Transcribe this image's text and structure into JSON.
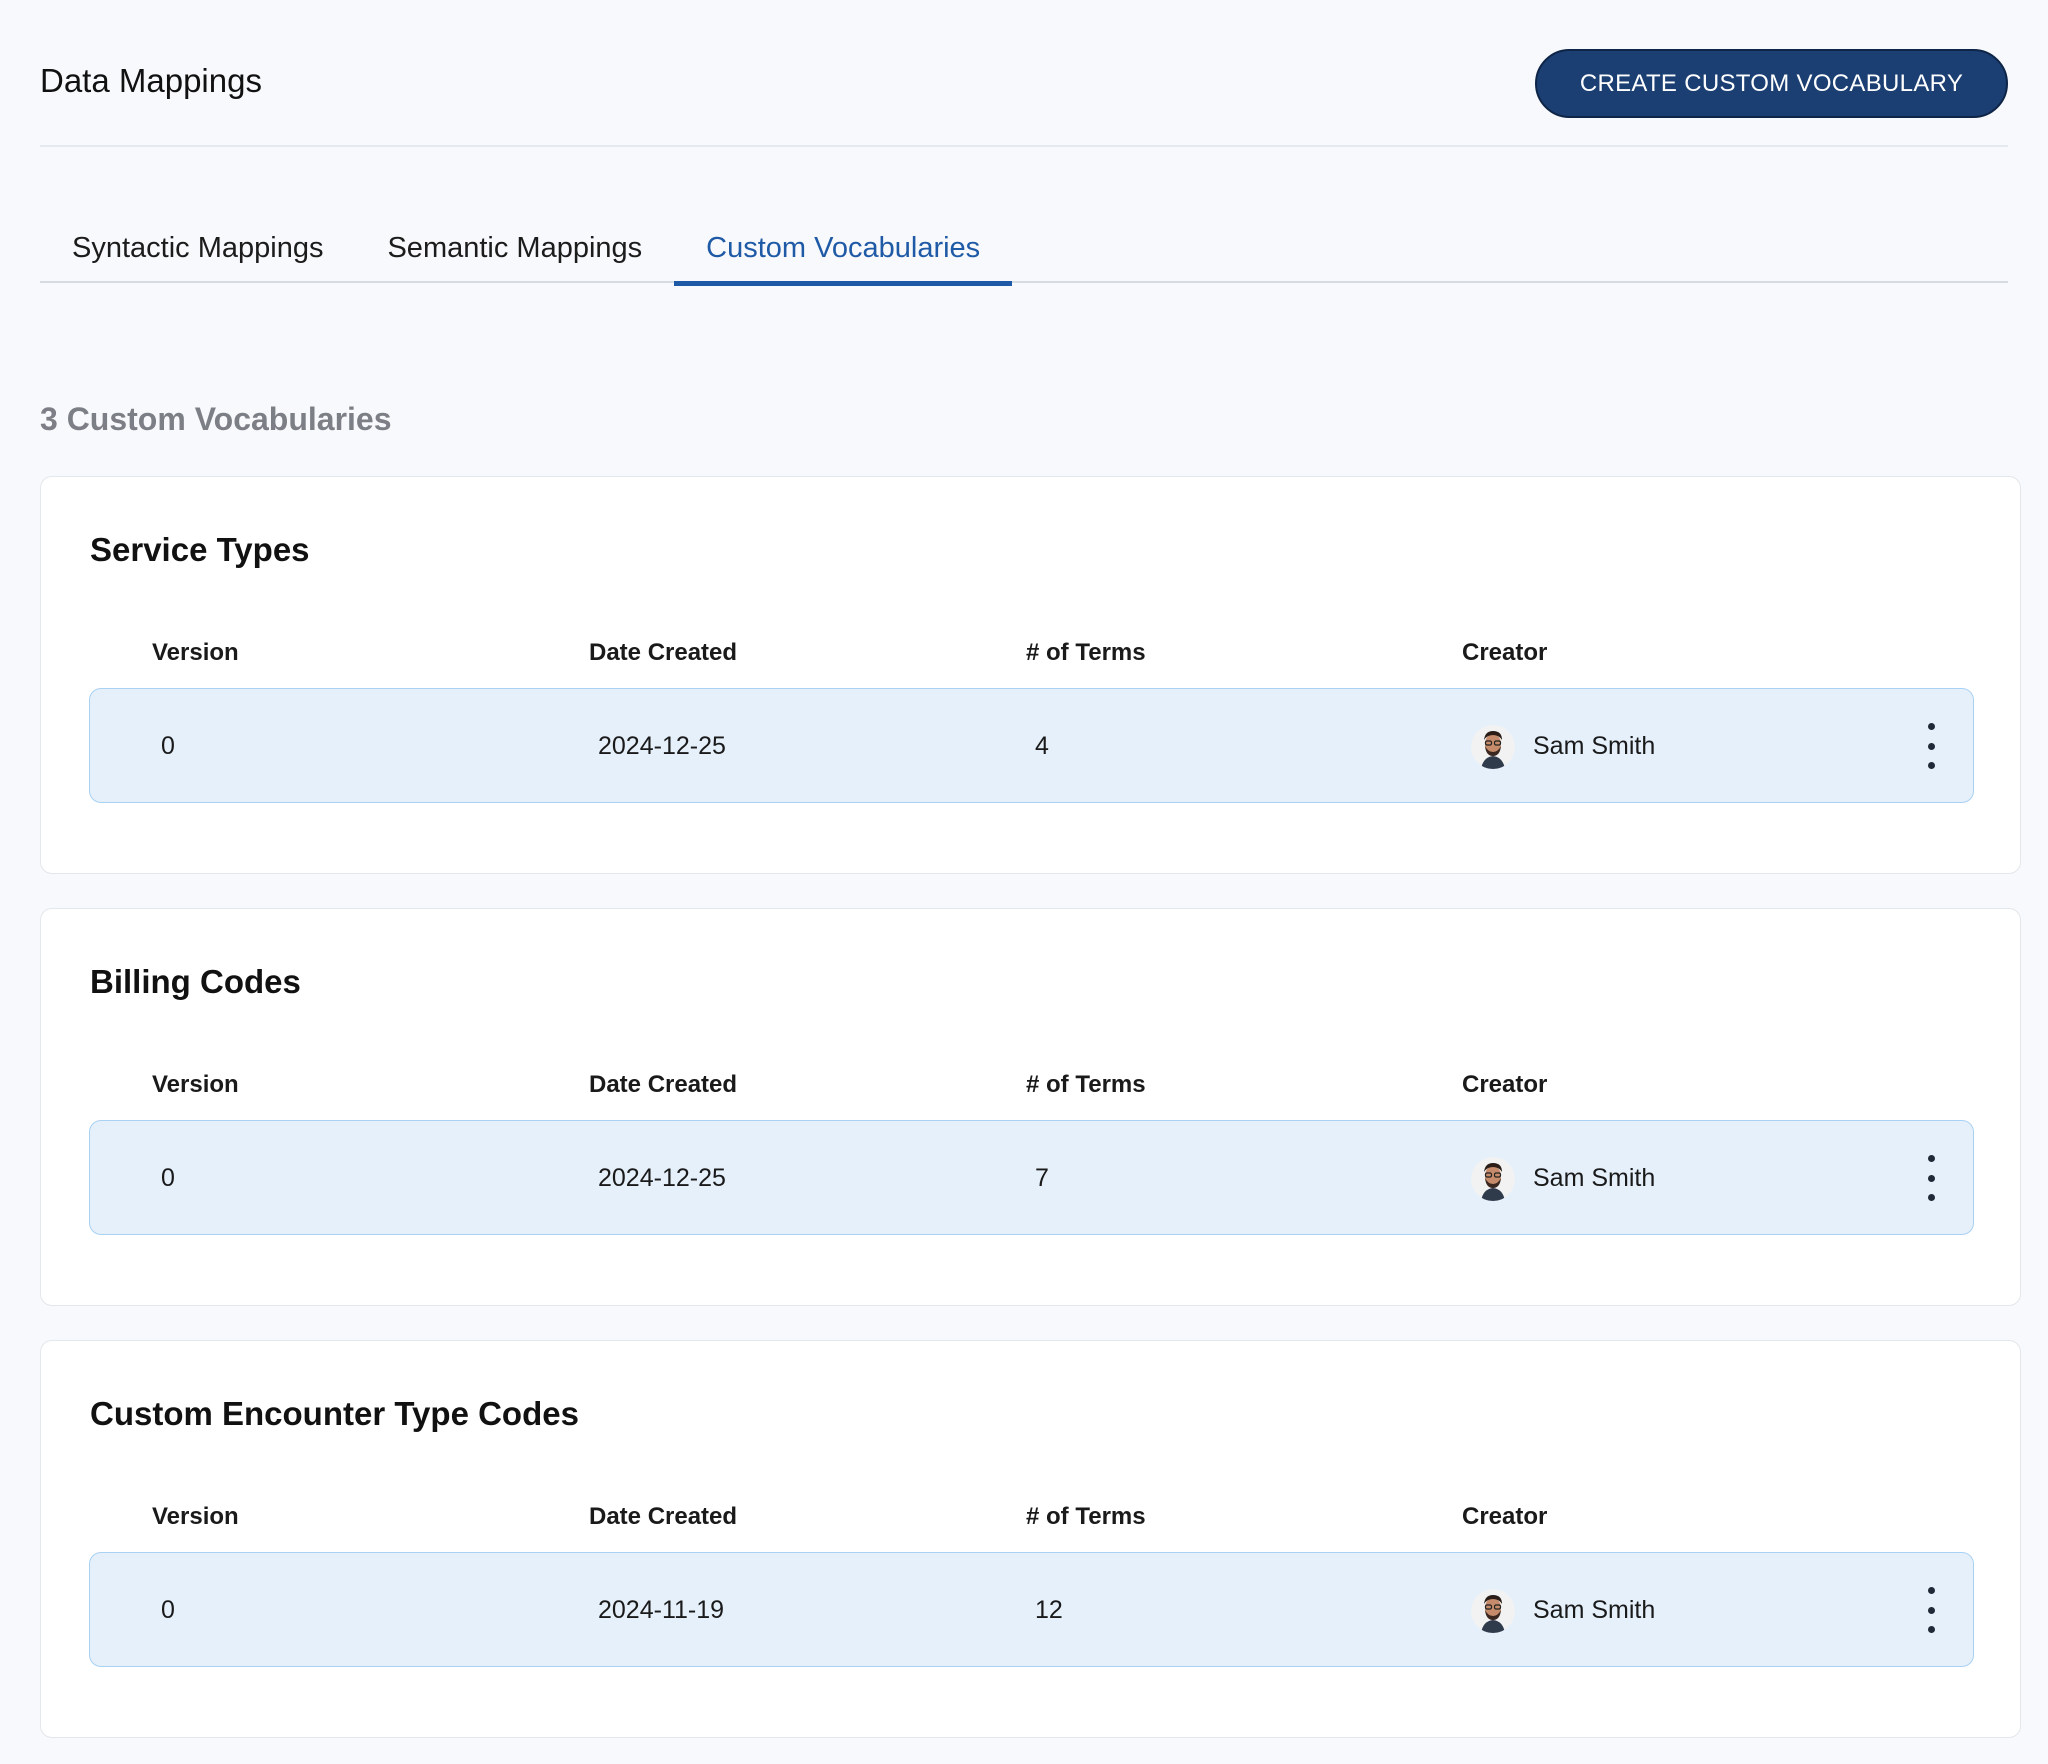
{
  "header": {
    "title": "Data Mappings",
    "create_button_label": "CREATE CUSTOM VOCABULARY"
  },
  "tabs": [
    {
      "label": "Syntactic Mappings",
      "active": false
    },
    {
      "label": "Semantic Mappings",
      "active": false
    },
    {
      "label": "Custom Vocabularies",
      "active": true
    }
  ],
  "count_label": "3 Custom Vocabularies",
  "columns": {
    "version": "Version",
    "date_created": "Date Created",
    "terms": "# of Terms",
    "creator": "Creator"
  },
  "vocabularies": [
    {
      "name": "Service Types",
      "version": "0",
      "date_created": "2024-12-25",
      "terms": "4",
      "creator": "Sam Smith"
    },
    {
      "name": "Billing Codes",
      "version": "0",
      "date_created": "2024-12-25",
      "terms": "7",
      "creator": "Sam Smith"
    },
    {
      "name": "Custom Encounter Type Codes",
      "version": "0",
      "date_created": "2024-11-19",
      "terms": "12",
      "creator": "Sam Smith"
    }
  ],
  "colors": {
    "accent": "#1f5aa6",
    "button": "#1b3f72",
    "row_bg": "#e5f0fb",
    "row_border": "#a9d1f2"
  },
  "icons": {
    "row_menu": "more-vertical-icon",
    "avatar": "user-avatar"
  }
}
